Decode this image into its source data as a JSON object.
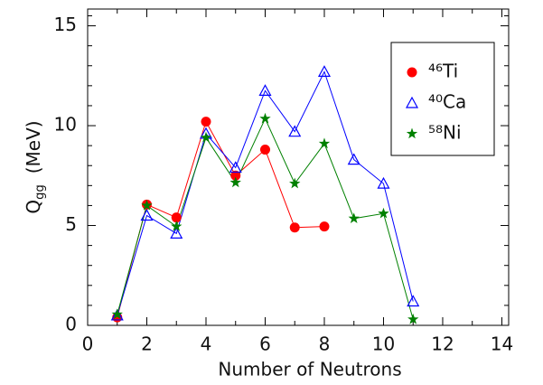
{
  "chart_data": {
    "type": "line",
    "xlabel": "Number of Neutrons",
    "ylabel": {
      "symbol": "Q",
      "subscript": "gg",
      "unit": "(MeV)"
    },
    "series": [
      {
        "name": "⁴⁶Ti",
        "color": "#ff0000",
        "marker": "circle",
        "x": [
          1,
          2,
          3,
          4,
          5,
          6,
          7,
          8
        ],
        "values": [
          0.4,
          6.05,
          5.4,
          10.2,
          7.5,
          8.8,
          4.9,
          4.95
        ]
      },
      {
        "name": "⁴⁰Ca",
        "color": "#0000ff",
        "marker": "triangle",
        "x": [
          1,
          2,
          3,
          4,
          5,
          6,
          7,
          8,
          9,
          10,
          11
        ],
        "values": [
          0.5,
          5.5,
          4.6,
          9.6,
          7.9,
          11.75,
          9.7,
          12.7,
          8.3,
          7.1,
          1.2
        ]
      },
      {
        "name": "⁵⁸Ni",
        "color": "#008000",
        "marker": "star",
        "x": [
          1,
          2,
          3,
          4,
          5,
          6,
          7,
          8,
          9,
          10,
          11
        ],
        "values": [
          0.55,
          6.0,
          4.95,
          9.4,
          7.15,
          10.35,
          7.1,
          9.1,
          5.35,
          5.6,
          0.3
        ]
      }
    ],
    "xlim": [
      0,
      14.23
    ],
    "xticks": [
      0,
      2,
      4,
      6,
      8,
      10,
      12,
      14
    ],
    "xminorticks": [
      1,
      3,
      5,
      7,
      9,
      11,
      13
    ],
    "ylim": [
      0,
      15.84
    ],
    "yticks": [
      0,
      5,
      10,
      15
    ],
    "yminorticks": [
      1,
      2,
      3,
      4,
      6,
      7,
      8,
      9,
      11,
      12,
      13,
      14,
      15.5
    ],
    "legend": "upper right"
  }
}
